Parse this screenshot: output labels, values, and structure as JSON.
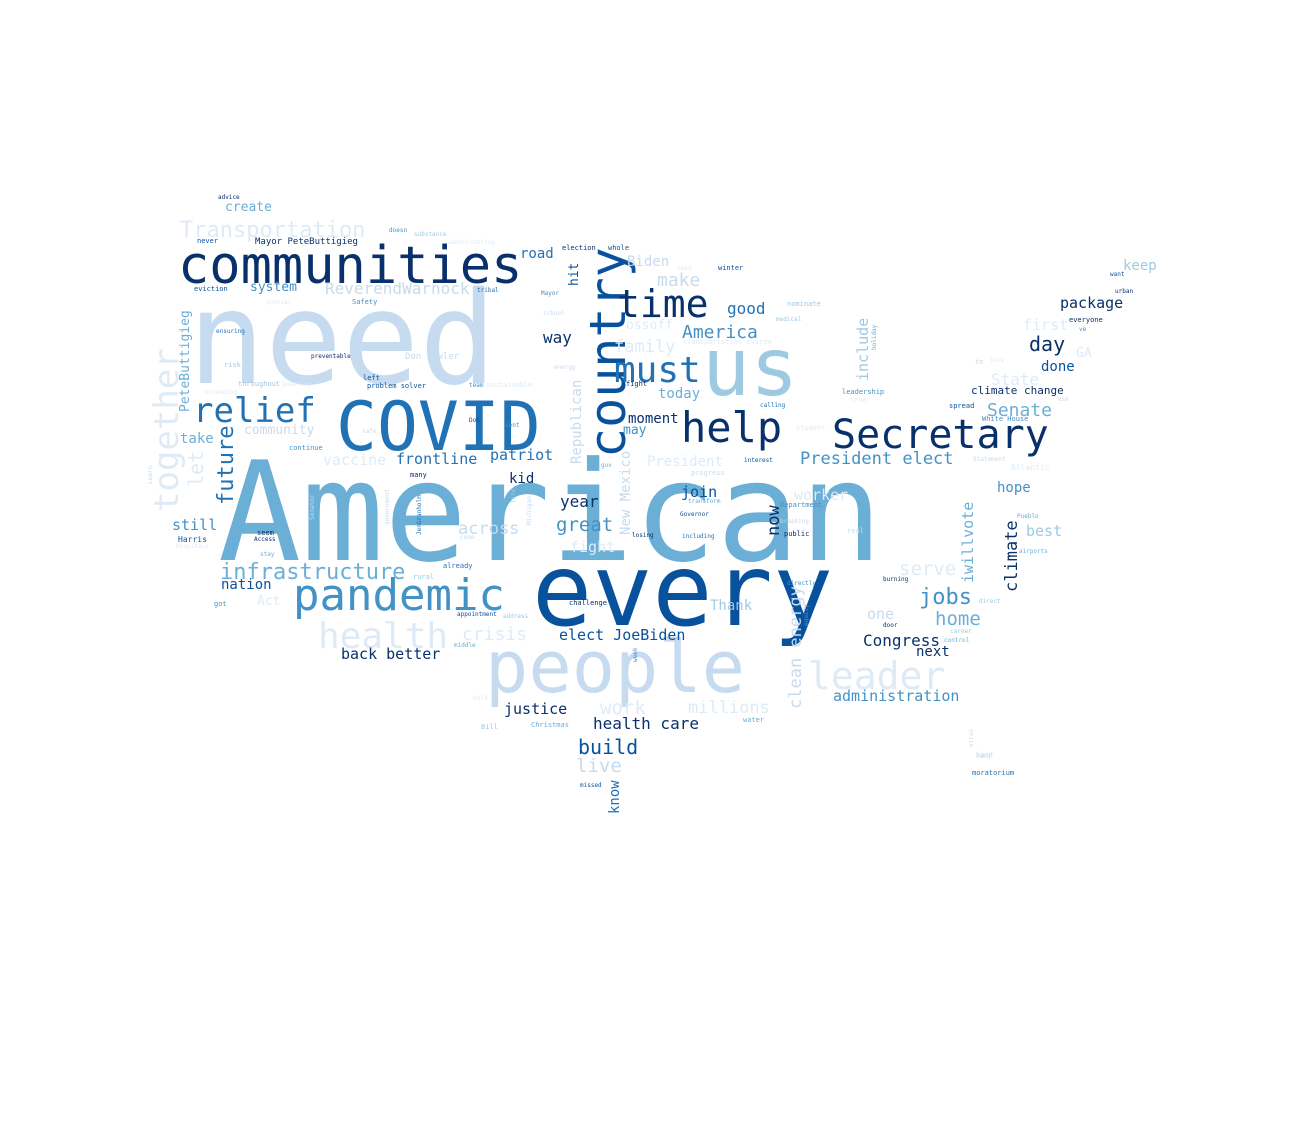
{
  "palette": {
    "background": "#ffffff",
    "shades": [
      "#08306b",
      "#08519c",
      "#2171b5",
      "#4292c6",
      "#6baed6",
      "#9ecae1",
      "#c6dbef",
      "#deebf7"
    ]
  },
  "words": [
    {
      "text": "American",
      "shade": 4
    },
    {
      "text": "every",
      "shade": 1
    },
    {
      "text": "need",
      "shade": 6
    },
    {
      "text": "people",
      "shade": 6
    },
    {
      "text": "COVID",
      "shade": 2
    },
    {
      "text": "us",
      "shade": 5
    },
    {
      "text": "communities",
      "shade": 0
    },
    {
      "text": "country",
      "shade": 1
    },
    {
      "text": "pandemic",
      "shade": 3
    },
    {
      "text": "help",
      "shade": 0
    },
    {
      "text": "Secretary",
      "shade": 0
    },
    {
      "text": "time",
      "shade": 0
    },
    {
      "text": "must",
      "shade": 2
    },
    {
      "text": "relief",
      "shade": 2
    },
    {
      "text": "leader",
      "shade": 7
    },
    {
      "text": "health",
      "shade": 7
    },
    {
      "text": "together",
      "shade": 7
    },
    {
      "text": "infrastructure",
      "shade": 4
    },
    {
      "text": "Transportation",
      "shade": 7
    },
    {
      "text": "future",
      "shade": 2
    },
    {
      "text": "jobs",
      "shade": 3
    },
    {
      "text": "build",
      "shade": 1
    },
    {
      "text": "President elect",
      "shade": 3
    },
    {
      "text": "America",
      "shade": 3
    },
    {
      "text": "work",
      "shade": 7
    },
    {
      "text": "millions",
      "shade": 7
    },
    {
      "text": "health care",
      "shade": 0
    },
    {
      "text": "Senate",
      "shade": 4
    },
    {
      "text": "day",
      "shade": 0
    },
    {
      "text": "home",
      "shade": 4
    },
    {
      "text": "great",
      "shade": 3
    },
    {
      "text": "clean energy",
      "shade": 6
    },
    {
      "text": "climate",
      "shade": 0
    },
    {
      "text": "serve",
      "shade": 7
    },
    {
      "text": "live",
      "shade": 6
    },
    {
      "text": "ReverendWarnock",
      "shade": 6
    },
    {
      "text": "crisis",
      "shade": 7
    },
    {
      "text": "across",
      "shade": 6
    },
    {
      "text": "Congress",
      "shade": 0
    },
    {
      "text": "administration",
      "shade": 3
    },
    {
      "text": "justice",
      "shade": 0
    },
    {
      "text": "family",
      "shade": 7
    },
    {
      "text": "make",
      "shade": 6
    },
    {
      "text": "now",
      "shade": 0
    },
    {
      "text": "include",
      "shade": 5
    },
    {
      "text": "iwillvote",
      "shade": 4
    },
    {
      "text": "elect JoeBiden",
      "shade": 1
    },
    {
      "text": "back better",
      "shade": 0
    },
    {
      "text": "Republican",
      "shade": 6
    },
    {
      "text": "New Mexico",
      "shade": 6
    },
    {
      "text": "frontline",
      "shade": 2
    },
    {
      "text": "vaccine",
      "shade": 7
    },
    {
      "text": "patriot",
      "shade": 2
    },
    {
      "text": "PeteButtigieg",
      "shade": 4
    },
    {
      "text": "good",
      "shade": 2
    },
    {
      "text": "way",
      "shade": 0
    },
    {
      "text": "State",
      "shade": 7
    },
    {
      "text": "package",
      "shade": 0
    },
    {
      "text": "join",
      "shade": 1
    },
    {
      "text": "let",
      "shade": 7
    },
    {
      "text": "year",
      "shade": 0
    },
    {
      "text": "one",
      "shade": 6
    },
    {
      "text": "still",
      "shade": 3
    },
    {
      "text": "Thank",
      "shade": 5
    },
    {
      "text": "President",
      "shade": 7
    },
    {
      "text": "best",
      "shade": 5
    },
    {
      "text": "first",
      "shade": 7
    },
    {
      "text": "worker",
      "shade": 7
    },
    {
      "text": "take",
      "shade": 4
    },
    {
      "text": "fight",
      "shade": 7
    },
    {
      "text": "know",
      "shade": 2
    },
    {
      "text": "Biden",
      "shade": 6
    },
    {
      "text": "hope",
      "shade": 3
    },
    {
      "text": "keep",
      "shade": 5
    },
    {
      "text": "done",
      "shade": 1
    },
    {
      "text": "next",
      "shade": 0
    },
    {
      "text": "moment",
      "shade": 0
    },
    {
      "text": "today",
      "shade": 4
    },
    {
      "text": "nation",
      "shade": 1
    },
    {
      "text": "road",
      "shade": 2
    },
    {
      "text": "ossoff",
      "shade": 7
    },
    {
      "text": "may",
      "shade": 3
    },
    {
      "text": "kid",
      "shade": 0
    },
    {
      "text": "create",
      "shade": 4
    },
    {
      "text": "system",
      "shade": 3
    },
    {
      "text": "hit",
      "shade": 1
    },
    {
      "text": "community",
      "shade": 6
    },
    {
      "text": "Act",
      "shade": 7
    },
    {
      "text": "GA",
      "shade": 7
    },
    {
      "text": "climate change",
      "shade": 0
    },
    {
      "text": "Mayor PeteButtigieg",
      "shade": 0
    },
    {
      "text": "Don Fowler",
      "shade": 6
    },
    {
      "text": "advice",
      "shade": 0
    },
    {
      "text": "never",
      "shade": 1
    },
    {
      "text": "doesn",
      "shade": 3
    },
    {
      "text": "substance",
      "shade": 5
    },
    {
      "text": "administering",
      "shade": 7
    },
    {
      "text": "election",
      "shade": 0
    },
    {
      "text": "whole",
      "shade": 1
    },
    {
      "text": "winter",
      "shade": 1
    },
    {
      "text": "want",
      "shade": 1
    },
    {
      "text": "urban",
      "shade": 0
    },
    {
      "text": "eviction",
      "shade": 1
    },
    {
      "text": "tribal",
      "shade": 2
    },
    {
      "text": "Mayor",
      "shade": 3
    },
    {
      "text": "special",
      "shade": 7
    },
    {
      "text": "Safety",
      "shade": 3
    },
    {
      "text": "school",
      "shade": 6
    },
    {
      "text": "nominate",
      "shade": 5
    },
    {
      "text": "medical",
      "shade": 5
    },
    {
      "text": "everyone",
      "shade": 0
    },
    {
      "text": "ensuring",
      "shade": 2
    },
    {
      "text": "transportation system",
      "shade": 7
    },
    {
      "text": "holiday",
      "shade": 4
    },
    {
      "text": "ve",
      "shade": 3
    },
    {
      "text": "preventable",
      "shade": 0
    },
    {
      "text": "risk",
      "shade": 5
    },
    {
      "text": "left",
      "shade": 1
    },
    {
      "text": "energy",
      "shade": 6
    },
    {
      "text": "te",
      "shade": 6
    },
    {
      "text": "extending",
      "shade": 7
    },
    {
      "text": "throughout",
      "shade": 5
    },
    {
      "text": "powering",
      "shade": 7
    },
    {
      "text": "problem solver",
      "shade": 1
    },
    {
      "text": "team",
      "shade": 3
    },
    {
      "text": "sustainable",
      "shade": 7
    },
    {
      "text": "fight",
      "shade": 0
    },
    {
      "text": "leadership",
      "shade": 3
    },
    {
      "text": "true",
      "shade": 7
    },
    {
      "text": "calling",
      "shade": 2
    },
    {
      "text": "spread",
      "shade": 1
    },
    {
      "text": "White House",
      "shade": 3
    },
    {
      "text": "Don",
      "shade": 1
    },
    {
      "text": "sent",
      "shade": 3
    },
    {
      "text": "safe",
      "shade": 6
    },
    {
      "text": "student",
      "shade": 7
    },
    {
      "text": "continue",
      "shade": 3
    },
    {
      "text": "gov",
      "shade": 4
    },
    {
      "text": "interest",
      "shade": 1
    },
    {
      "text": "Statement",
      "shade": 6
    },
    {
      "text": "Learn",
      "shade": 6
    },
    {
      "text": "many",
      "shade": 0
    },
    {
      "text": "progress",
      "shade": 6
    },
    {
      "text": "Senator",
      "shade": 6
    },
    {
      "text": "government",
      "shade": 6
    },
    {
      "text": "JenGranholm",
      "shade": 2
    },
    {
      "text": "line",
      "shade": 5
    },
    {
      "text": "Michigan",
      "shade": 6
    },
    {
      "text": "transform",
      "shade": 4
    },
    {
      "text": "Department",
      "shade": 3
    },
    {
      "text": "Pueblo",
      "shade": 4
    },
    {
      "text": "Governor",
      "shade": 1
    },
    {
      "text": "breaking",
      "shade": 6
    },
    {
      "text": "public",
      "shade": 0
    },
    {
      "text": "real",
      "shade": 6
    },
    {
      "text": "seem",
      "shade": 0
    },
    {
      "text": "Access",
      "shade": 0
    },
    {
      "text": "Harris",
      "shade": 1
    },
    {
      "text": "hospitals",
      "shade": 7
    },
    {
      "text": "losing",
      "shade": 0
    },
    {
      "text": "including",
      "shade": 2
    },
    {
      "text": "airports",
      "shade": 4
    },
    {
      "text": "stay",
      "shade": 4
    },
    {
      "text": "come",
      "shade": 6
    },
    {
      "text": "already",
      "shade": 2
    },
    {
      "text": "rural",
      "shade": 5
    },
    {
      "text": "directly",
      "shade": 3
    },
    {
      "text": "burning",
      "shade": 0
    },
    {
      "text": "got",
      "shade": 3
    },
    {
      "text": "challenge",
      "shade": 0
    },
    {
      "text": "appointment",
      "shade": 1
    },
    {
      "text": "address",
      "shade": 5
    },
    {
      "text": "door",
      "shade": 0
    },
    {
      "text": "equity",
      "shade": 3
    },
    {
      "text": "direct",
      "shade": 5
    },
    {
      "text": "career",
      "shade": 5
    },
    {
      "text": "control",
      "shade": 4
    },
    {
      "text": "middle",
      "shade": 4
    },
    {
      "text": "week",
      "shade": 3
    },
    {
      "text": "hard",
      "shade": 6
    },
    {
      "text": "Bill",
      "shade": 5
    },
    {
      "text": "Christmas",
      "shade": 4
    },
    {
      "text": "water",
      "shade": 4
    },
    {
      "text": "virus",
      "shade": 6
    },
    {
      "text": "band",
      "shade": 6
    },
    {
      "text": "moratorium",
      "shade": 2
    },
    {
      "text": "missed",
      "shade": 1
    },
    {
      "text": "bold",
      "shade": 7
    },
    {
      "text": "Atlantic",
      "shade": 7
    },
    {
      "text": "use",
      "shade": 6
    },
    {
      "text": "need",
      "shade": 7
    },
    {
      "text": "tele",
      "shade": 7
    }
  ]
}
